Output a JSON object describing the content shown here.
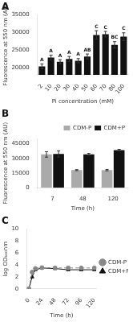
{
  "chart_data": [
    {
      "type": "bar",
      "title": "A",
      "categories": [
        "2",
        "10",
        "20",
        "30",
        "40",
        "50",
        "60",
        "70",
        "80",
        "100"
      ],
      "values": [
        20400,
        22900,
        21700,
        22500,
        22000,
        23200,
        29300,
        29500,
        26500,
        28800
      ],
      "errors": [
        700,
        700,
        600,
        700,
        600,
        700,
        1200,
        800,
        900,
        1100
      ],
      "color": "#111111",
      "annotations": [
        "A",
        "A",
        "A",
        "A",
        "A",
        "AB",
        "C",
        "C",
        "BC",
        "C"
      ],
      "xlabel": "Pi concentration (mM)",
      "ylabel": "Fluorescence at 550 nm (AU)",
      "ylim": [
        18000,
        35000
      ],
      "yticks": [
        20000,
        25000,
        30000,
        35000
      ],
      "grid": false
    },
    {
      "type": "bar",
      "title": "B",
      "categories": [
        "7",
        "48",
        "120"
      ],
      "series": [
        {
          "name": "CDM-P",
          "color": "#aaaaaa",
          "values": [
            34000,
            18000,
            18000
          ],
          "errors": [
            2800,
            500,
            700
          ]
        },
        {
          "name": "CDM+P",
          "color": "#111111",
          "values": [
            34500,
            34000,
            38500
          ],
          "errors": [
            3200,
            1000,
            700
          ]
        }
      ],
      "xlabel": "Time (h)",
      "ylabel": "Fluorescence at 550 nm (AU)",
      "ylim": [
        0,
        50000
      ],
      "yticks": [
        0,
        15000,
        30000,
        45000
      ],
      "legend": "upper right",
      "grid": false
    },
    {
      "type": "line",
      "title": "C",
      "series": [
        {
          "name": "CDM-P",
          "color": "#888888",
          "marker": "circle",
          "line_style": "dashed",
          "x": [
            0,
            6,
            12,
            24,
            48,
            72,
            96,
            120
          ],
          "values": [
            0.05,
            2.8,
            3.4,
            3.55,
            3.5,
            3.5,
            3.5,
            3.5
          ]
        },
        {
          "name": "CDM+P",
          "color": "#111111",
          "marker": "triangle",
          "line_style": "solid",
          "x": [
            0,
            6,
            12,
            24,
            48,
            72,
            96,
            120
          ],
          "values": [
            0.05,
            2.0,
            3.2,
            3.5,
            3.4,
            3.2,
            3.2,
            3.2
          ]
        }
      ],
      "xlabel": "Time (h)",
      "ylabel": "log OD₆₆₀nm",
      "xlim": [
        -4,
        124
      ],
      "xticks": [
        0,
        24,
        48,
        72,
        96,
        120
      ],
      "ylim": [
        0,
        10
      ],
      "yticks": [
        0,
        2,
        4,
        6,
        8,
        10
      ],
      "legend": "center right",
      "grid": false
    }
  ]
}
